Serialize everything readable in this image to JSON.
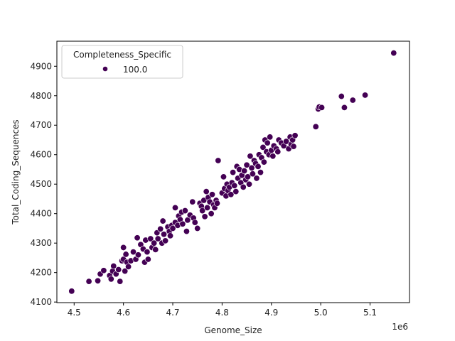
{
  "chart_data": {
    "type": "scatter",
    "title": "",
    "xlabel": "Genome_Size",
    "ylabel": "Total_Coding_Sequences",
    "x_offset_label": "1e6",
    "xlim": [
      4.465,
      5.18
    ],
    "ylim": [
      4098,
      4985
    ],
    "x_ticks": [
      4.5,
      4.6,
      4.7,
      4.8,
      4.9,
      5.0,
      5.1
    ],
    "x_tick_labels": [
      "4.5",
      "4.6",
      "4.7",
      "4.8",
      "4.9",
      "5.0",
      "5.1"
    ],
    "y_ticks": [
      4100,
      4200,
      4300,
      4400,
      4500,
      4600,
      4700,
      4800,
      4900
    ],
    "y_tick_labels": [
      "4100",
      "4200",
      "4300",
      "4400",
      "4500",
      "4600",
      "4700",
      "4800",
      "4900"
    ],
    "grid": false,
    "legend": {
      "title": "Completeness_Specific",
      "position": "upper left",
      "entries": [
        {
          "label": "100.0",
          "color": "#440154"
        }
      ]
    },
    "marker_color": "#440154",
    "series": [
      {
        "name": "100.0",
        "points": [
          [
            4.495,
            4137
          ],
          [
            4.53,
            4170
          ],
          [
            4.548,
            4172
          ],
          [
            4.553,
            4195
          ],
          [
            4.56,
            4207
          ],
          [
            4.572,
            4190
          ],
          [
            4.575,
            4178
          ],
          [
            4.578,
            4205
          ],
          [
            4.58,
            4222
          ],
          [
            4.585,
            4195
          ],
          [
            4.59,
            4210
          ],
          [
            4.593,
            4170
          ],
          [
            4.597,
            4240
          ],
          [
            4.6,
            4245
          ],
          [
            4.603,
            4205
          ],
          [
            4.605,
            4262
          ],
          [
            4.607,
            4235
          ],
          [
            4.61,
            4220
          ],
          [
            4.6,
            4285
          ],
          [
            4.615,
            4240
          ],
          [
            4.62,
            4270
          ],
          [
            4.625,
            4245
          ],
          [
            4.628,
            4318
          ],
          [
            4.63,
            4260
          ],
          [
            4.635,
            4295
          ],
          [
            4.64,
            4280
          ],
          [
            4.643,
            4235
          ],
          [
            4.645,
            4310
          ],
          [
            4.648,
            4270
          ],
          [
            4.65,
            4245
          ],
          [
            4.655,
            4315
          ],
          [
            4.658,
            4285
          ],
          [
            4.662,
            4300
          ],
          [
            4.665,
            4278
          ],
          [
            4.668,
            4335
          ],
          [
            4.67,
            4315
          ],
          [
            4.675,
            4348
          ],
          [
            4.678,
            4300
          ],
          [
            4.68,
            4375
          ],
          [
            4.682,
            4330
          ],
          [
            4.685,
            4308
          ],
          [
            4.69,
            4355
          ],
          [
            4.693,
            4340
          ],
          [
            4.695,
            4325
          ],
          [
            4.698,
            4360
          ],
          [
            4.7,
            4350
          ],
          [
            4.705,
            4420
          ],
          [
            4.705,
            4370
          ],
          [
            4.71,
            4360
          ],
          [
            4.712,
            4392
          ],
          [
            4.715,
            4380
          ],
          [
            4.718,
            4405
          ],
          [
            4.72,
            4365
          ],
          [
            4.725,
            4410
          ],
          [
            4.728,
            4340
          ],
          [
            4.73,
            4378
          ],
          [
            4.735,
            4395
          ],
          [
            4.74,
            4440
          ],
          [
            4.742,
            4385
          ],
          [
            4.745,
            4370
          ],
          [
            4.75,
            4350
          ],
          [
            4.755,
            4435
          ],
          [
            4.758,
            4425
          ],
          [
            4.76,
            4410
          ],
          [
            4.763,
            4445
          ],
          [
            4.765,
            4390
          ],
          [
            4.768,
            4475
          ],
          [
            4.77,
            4420
          ],
          [
            4.772,
            4455
          ],
          [
            4.775,
            4440
          ],
          [
            4.778,
            4400
          ],
          [
            4.78,
            4465
          ],
          [
            4.783,
            4430
          ],
          [
            4.785,
            4420
          ],
          [
            4.788,
            4445
          ],
          [
            4.79,
            4435
          ],
          [
            4.792,
            4580
          ],
          [
            4.8,
            4470
          ],
          [
            4.803,
            4525
          ],
          [
            4.805,
            4485
          ],
          [
            4.808,
            4460
          ],
          [
            4.81,
            4500
          ],
          [
            4.812,
            4478
          ],
          [
            4.815,
            4490
          ],
          [
            4.818,
            4465
          ],
          [
            4.82,
            4505
          ],
          [
            4.822,
            4540
          ],
          [
            4.825,
            4495
          ],
          [
            4.828,
            4475
          ],
          [
            4.83,
            4560
          ],
          [
            4.832,
            4520
          ],
          [
            4.835,
            4550
          ],
          [
            4.838,
            4505
          ],
          [
            4.84,
            4530
          ],
          [
            4.843,
            4490
          ],
          [
            4.845,
            4545
          ],
          [
            4.848,
            4515
          ],
          [
            4.85,
            4565
          ],
          [
            4.852,
            4525
          ],
          [
            4.855,
            4500
          ],
          [
            4.857,
            4595
          ],
          [
            4.86,
            4555
          ],
          [
            4.862,
            4535
          ],
          [
            4.865,
            4580
          ],
          [
            4.868,
            4570
          ],
          [
            4.87,
            4520
          ],
          [
            4.873,
            4560
          ],
          [
            4.875,
            4600
          ],
          [
            4.878,
            4540
          ],
          [
            4.88,
            4590
          ],
          [
            4.883,
            4625
          ],
          [
            4.885,
            4575
          ],
          [
            4.887,
            4650
          ],
          [
            4.89,
            4610
          ],
          [
            4.892,
            4640
          ],
          [
            4.895,
            4600
          ],
          [
            4.897,
            4660
          ],
          [
            4.9,
            4615
          ],
          [
            4.903,
            4595
          ],
          [
            4.905,
            4630
          ],
          [
            4.91,
            4620
          ],
          [
            4.913,
            4610
          ],
          [
            4.915,
            4650
          ],
          [
            4.92,
            4640
          ],
          [
            4.925,
            4630
          ],
          [
            4.93,
            4645
          ],
          [
            4.935,
            4620
          ],
          [
            4.938,
            4660
          ],
          [
            4.94,
            4635
          ],
          [
            4.943,
            4650
          ],
          [
            4.945,
            4628
          ],
          [
            4.948,
            4665
          ],
          [
            4.99,
            4695
          ],
          [
            4.995,
            4755
          ],
          [
            4.997,
            4762
          ],
          [
            5.002,
            4760
          ],
          [
            5.042,
            4798
          ],
          [
            5.048,
            4760
          ],
          [
            5.065,
            4785
          ],
          [
            5.09,
            4802
          ],
          [
            5.148,
            4945
          ]
        ]
      }
    ]
  }
}
